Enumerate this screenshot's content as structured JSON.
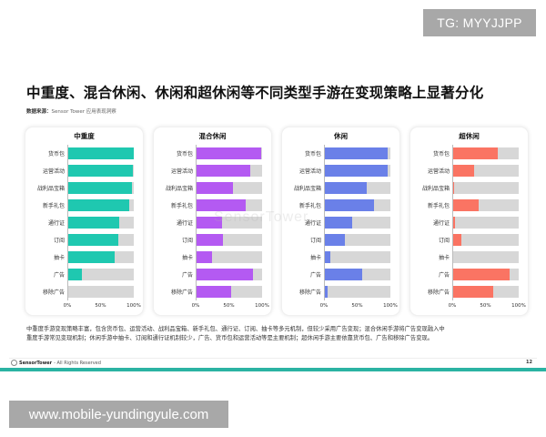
{
  "badge_top": "TG: MYYJJPP",
  "title": "中重度、混合休闲、休闲和超休闲等不同类型手游在变现策略上显著分化",
  "source": {
    "label": "数据来源：",
    "text": "Sensor Tower 应用表现洞察"
  },
  "watermark": "SensorTower",
  "chart_data": [
    {
      "type": "bar",
      "orientation": "horizontal",
      "title": "中重度",
      "color": "#1fc8b0",
      "categories": [
        "货币包",
        "运营活动",
        "战利品宝箱",
        "新手礼包",
        "通行证",
        "订阅",
        "抽卡",
        "广告",
        "移除广告"
      ],
      "values": [
        100,
        99,
        97,
        93,
        78,
        77,
        71,
        22,
        2
      ],
      "xlim": [
        0,
        100
      ],
      "xticks": [
        "0%",
        "50%",
        "100%"
      ],
      "xlabel": "",
      "ylabel": ""
    },
    {
      "type": "bar",
      "orientation": "horizontal",
      "title": "混合休闲",
      "color": "#b45af2",
      "categories": [
        "货币包",
        "运营活动",
        "战利品宝箱",
        "新手礼包",
        "通行证",
        "订阅",
        "抽卡",
        "广告",
        "移除广告"
      ],
      "values": [
        98,
        82,
        56,
        76,
        40,
        41,
        25,
        86,
        53
      ],
      "xlim": [
        0,
        100
      ],
      "xticks": [
        "0%",
        "50%",
        "100%"
      ],
      "xlabel": "",
      "ylabel": ""
    },
    {
      "type": "bar",
      "orientation": "horizontal",
      "title": "休闲",
      "color": "#6a80e8",
      "categories": [
        "货币包",
        "运营活动",
        "战利品宝箱",
        "新手礼包",
        "通行证",
        "订阅",
        "抽卡",
        "广告",
        "移除广告"
      ],
      "values": [
        96,
        96,
        64,
        76,
        43,
        32,
        9,
        58,
        5
      ],
      "xlim": [
        0,
        100
      ],
      "xticks": [
        "0%",
        "50%",
        "100%"
      ],
      "xlabel": "",
      "ylabel": ""
    },
    {
      "type": "bar",
      "orientation": "horizontal",
      "title": "超休闲",
      "color": "#fa7463",
      "categories": [
        "货币包",
        "运营活动",
        "战利品宝箱",
        "新手礼包",
        "通行证",
        "订阅",
        "抽卡",
        "广告",
        "移除广告"
      ],
      "values": [
        68,
        33,
        3,
        40,
        4,
        14,
        1,
        86,
        61
      ],
      "xlim": [
        0,
        100
      ],
      "xticks": [
        "0%",
        "50%",
        "100%"
      ],
      "xlabel": "",
      "ylabel": ""
    }
  ],
  "summary": {
    "line1": "中重度手游变现策略丰富，包含货币包、运营活动、战利品宝箱、新手礼包、通行证、订阅、抽卡等多元机制，但较少采用广告变现；混合休闲手游将广告变现融入中",
    "line2": "重度手游常见变现机制；休闲手游中抽卡、订阅和通行证机制较少，广告、货币包和运营活动等是主要机制；超休闲手游主要依靠货币包、广告和移除广告变现。"
  },
  "footer": {
    "brand": "SensorTower",
    "rights": " - All Rights Reserved",
    "page_number": "12"
  },
  "badge_bottom": "www.mobile-yundingyule.com"
}
